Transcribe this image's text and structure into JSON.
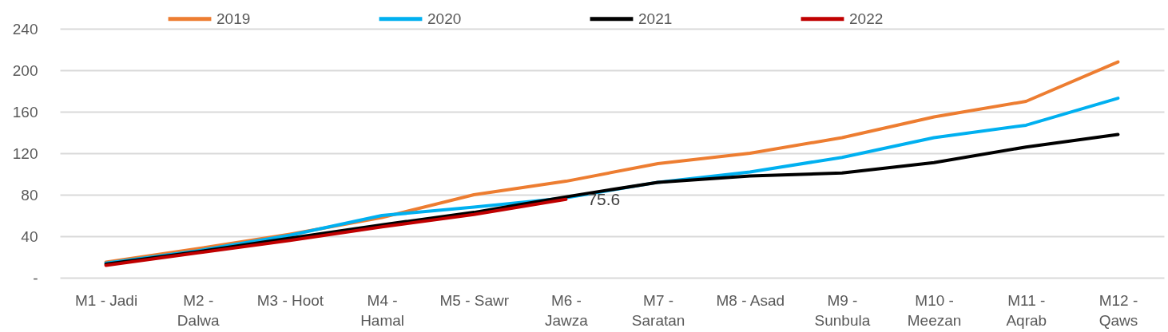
{
  "chart_data": {
    "type": "line",
    "categories": [
      "M1 - Jadi",
      "M2 - Dalwa",
      "M3 - Hoot",
      "M4 - Hamal",
      "M5 - Sawr",
      "M6 - Jawza",
      "M7 - Saratan",
      "M8 - Asad",
      "M9 - Sunbula",
      "M10 - Meezan",
      "M11 - Aqrab",
      "M12 - Qaws"
    ],
    "series": [
      {
        "name": "2019",
        "color": "#ed7d31",
        "values": [
          15,
          28,
          42,
          58,
          80,
          93,
          110,
          120,
          135,
          155,
          170,
          208
        ]
      },
      {
        "name": "2020",
        "color": "#00b0f0",
        "values": [
          14,
          26,
          41,
          60,
          68,
          77,
          92,
          102,
          116,
          135,
          147,
          173
        ]
      },
      {
        "name": "2021",
        "color": "#000000",
        "values": [
          13,
          25,
          38,
          51,
          63,
          78,
          92,
          98,
          101,
          111,
          126,
          138
        ]
      },
      {
        "name": "2022",
        "color": "#c00000",
        "values": [
          12,
          24,
          36,
          49,
          61,
          75.6,
          null,
          null,
          null,
          null,
          null,
          null
        ],
        "value_labels": [
          null,
          null,
          null,
          null,
          null,
          "75.6",
          null,
          null,
          null,
          null,
          null,
          null
        ]
      }
    ],
    "ylim": [
      0,
      240
    ],
    "yticks": [
      {
        "value": 0,
        "label": "-"
      },
      40,
      80,
      120,
      160,
      200,
      240
    ],
    "grid": "y",
    "legend": "top",
    "line_style": "solid"
  }
}
